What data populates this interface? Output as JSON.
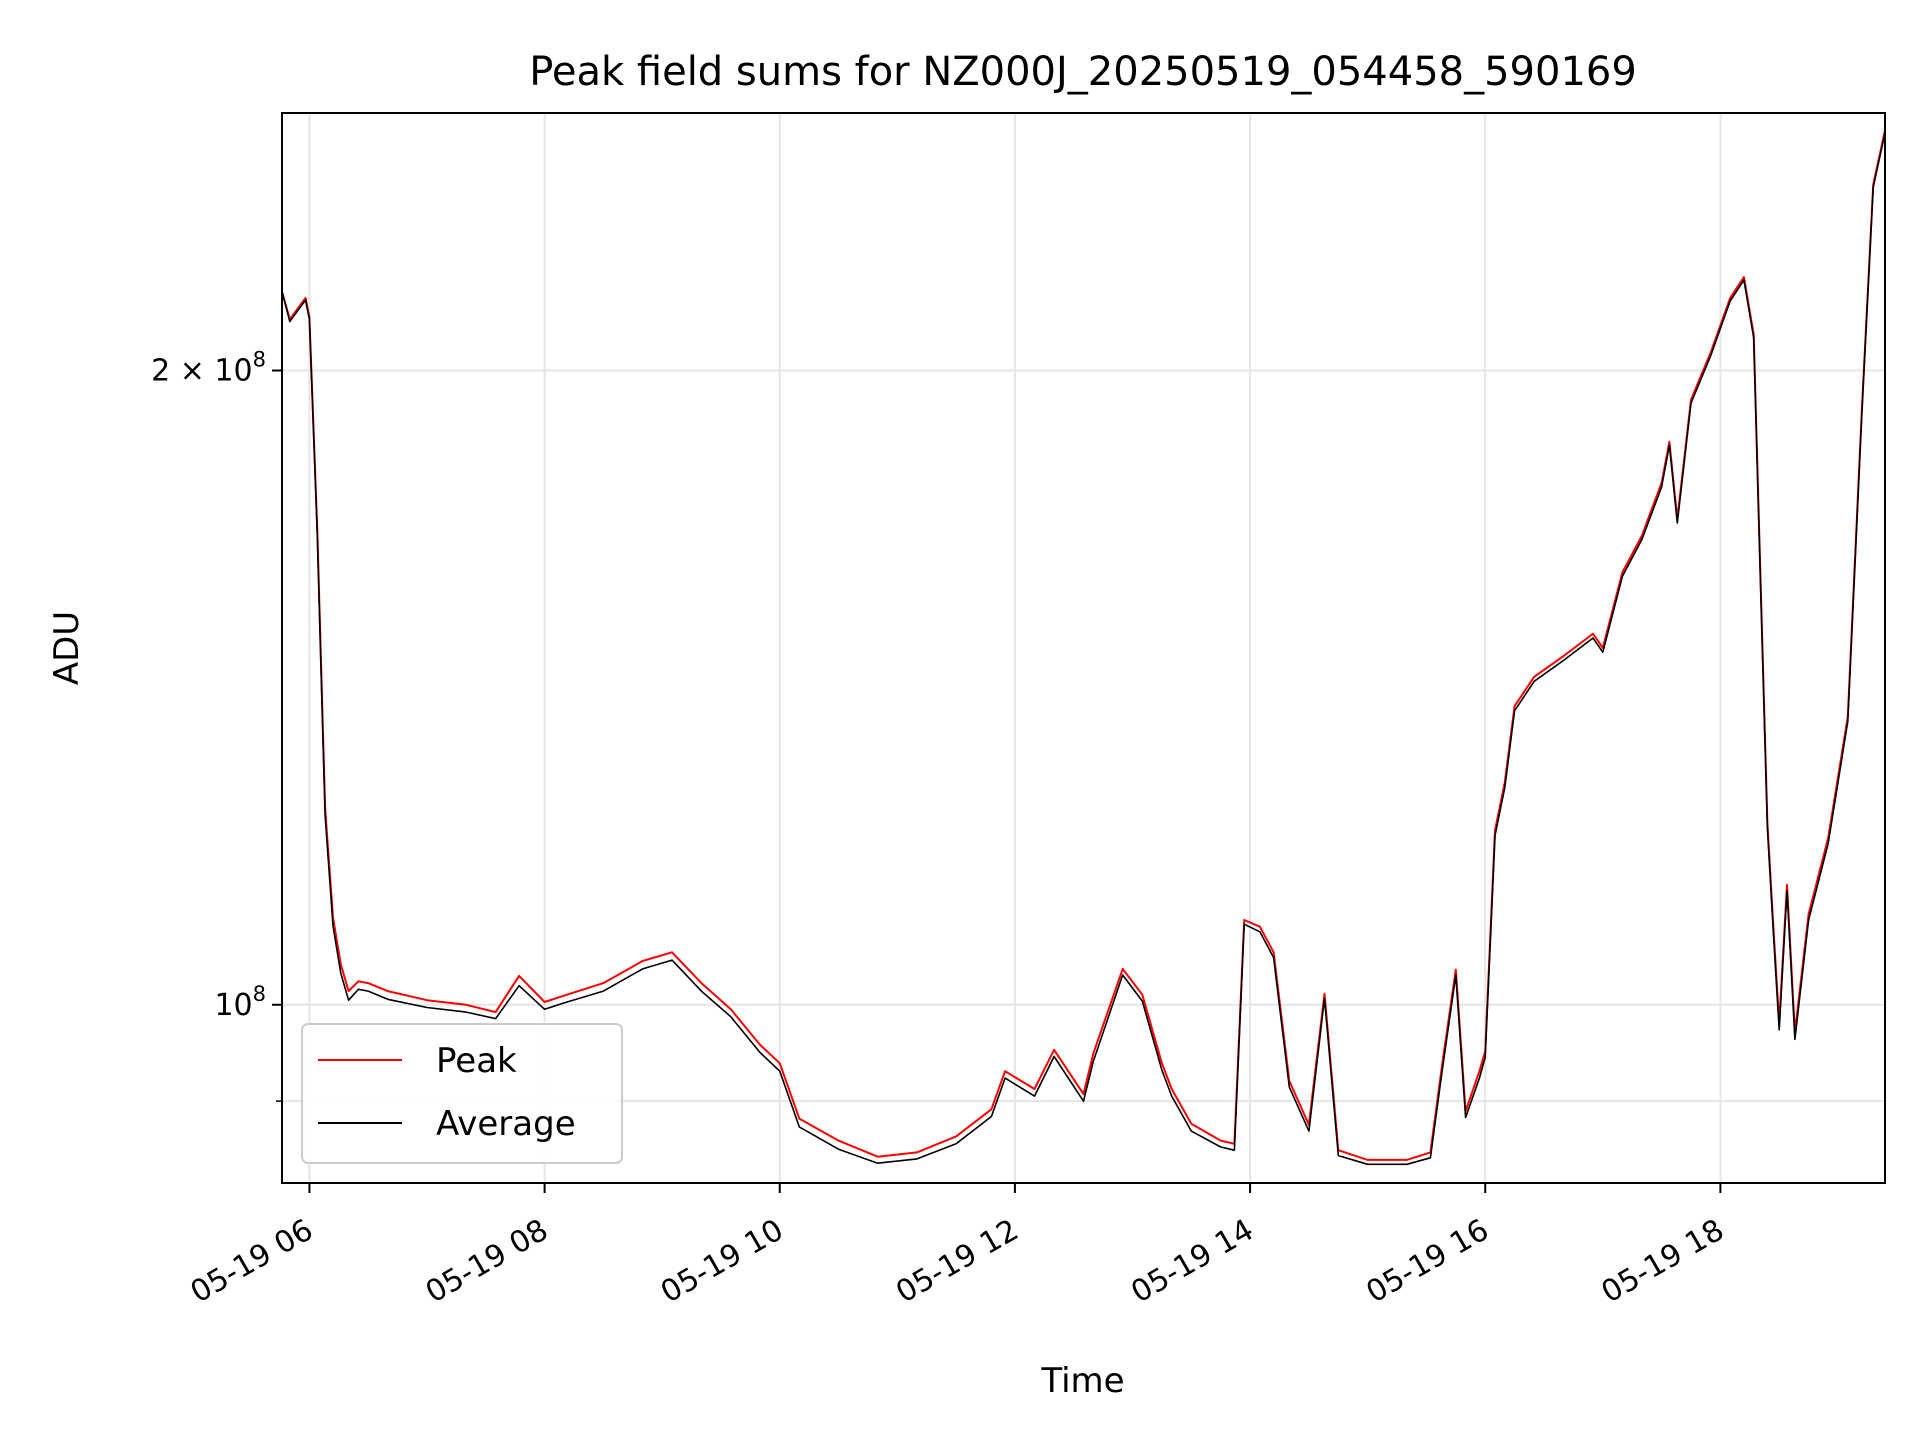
{
  "chart_data": {
    "type": "line",
    "title": "Peak field sums for NZ000J_20250519_054458_590169",
    "xlabel": "Time",
    "ylabel": "ADU",
    "y_scale": "log",
    "ylim": [
      82300000,
      265000000
    ],
    "xlim": [
      "2025-05-19 05:46",
      "2025-05-19 19:24"
    ],
    "grid": true,
    "legend_position": "lower-left",
    "x_ticks": [
      {
        "value": "2025-05-19 06:00",
        "label": "05-19 06"
      },
      {
        "value": "2025-05-19 08:00",
        "label": "05-19 08"
      },
      {
        "value": "2025-05-19 10:00",
        "label": "05-19 10"
      },
      {
        "value": "2025-05-19 12:00",
        "label": "05-19 12"
      },
      {
        "value": "2025-05-19 14:00",
        "label": "05-19 14"
      },
      {
        "value": "2025-05-19 16:00",
        "label": "05-19 16"
      },
      {
        "value": "2025-05-19 18:00",
        "label": "05-19 18"
      }
    ],
    "y_ticks_major": [
      {
        "value": 100000000,
        "base": "10",
        "exp": "8",
        "coef": ""
      },
      {
        "value": 200000000,
        "base": "10",
        "exp": "8",
        "coef": "2 × "
      }
    ],
    "y_ticks_minor": [
      90000000
    ],
    "x": [
      "2025-05-19 05:46",
      "2025-05-19 05:50",
      "2025-05-19 05:54",
      "2025-05-19 05:58",
      "2025-05-19 06:00",
      "2025-05-19 06:04",
      "2025-05-19 06:08",
      "2025-05-19 06:12",
      "2025-05-19 06:16",
      "2025-05-19 06:20",
      "2025-05-19 06:25",
      "2025-05-19 06:30",
      "2025-05-19 06:40",
      "2025-05-19 07:00",
      "2025-05-19 07:20",
      "2025-05-19 07:35",
      "2025-05-19 07:47",
      "2025-05-19 08:00",
      "2025-05-19 08:10",
      "2025-05-19 08:30",
      "2025-05-19 08:50",
      "2025-05-19 09:05",
      "2025-05-19 09:20",
      "2025-05-19 09:35",
      "2025-05-19 09:50",
      "2025-05-19 10:00",
      "2025-05-19 10:10",
      "2025-05-19 10:30",
      "2025-05-19 10:50",
      "2025-05-19 11:10",
      "2025-05-19 11:30",
      "2025-05-19 11:48",
      "2025-05-19 11:55",
      "2025-05-19 12:10",
      "2025-05-19 12:20",
      "2025-05-19 12:35",
      "2025-05-19 12:40",
      "2025-05-19 12:55",
      "2025-05-19 13:05",
      "2025-05-19 13:15",
      "2025-05-19 13:20",
      "2025-05-19 13:30",
      "2025-05-19 13:45",
      "2025-05-19 13:52",
      "2025-05-19 13:57",
      "2025-05-19 14:05",
      "2025-05-19 14:12",
      "2025-05-19 14:20",
      "2025-05-19 14:30",
      "2025-05-19 14:38",
      "2025-05-19 14:45",
      "2025-05-19 15:00",
      "2025-05-19 15:20",
      "2025-05-19 15:32",
      "2025-05-19 15:38",
      "2025-05-19 15:45",
      "2025-05-19 15:50",
      "2025-05-19 15:57",
      "2025-05-19 16:00",
      "2025-05-19 16:05",
      "2025-05-19 16:10",
      "2025-05-19 16:15",
      "2025-05-19 16:25",
      "2025-05-19 16:40",
      "2025-05-19 16:55",
      "2025-05-19 17:00",
      "2025-05-19 17:10",
      "2025-05-19 17:20",
      "2025-05-19 17:30",
      "2025-05-19 17:34",
      "2025-05-19 17:38",
      "2025-05-19 17:45",
      "2025-05-19 17:55",
      "2025-05-19 18:05",
      "2025-05-19 18:12",
      "2025-05-19 18:17",
      "2025-05-19 18:20",
      "2025-05-19 18:24",
      "2025-05-19 18:27",
      "2025-05-19 18:30",
      "2025-05-19 18:34",
      "2025-05-19 18:38",
      "2025-05-19 18:45",
      "2025-05-19 18:55",
      "2025-05-19 19:05",
      "2025-05-19 19:12",
      "2025-05-19 19:18",
      "2025-05-19 19:24"
    ],
    "series": [
      {
        "name": "Peak",
        "color": "#ff0000",
        "values": [
          218000000,
          211500000,
          214000000,
          216500000,
          212000000,
          168000000,
          124000000,
          110000000,
          104500000,
          101500000,
          102600000,
          102400000,
          101500000,
          100500000,
          100000000,
          99200000,
          103200000,
          100300000,
          101000000,
          102400000,
          104900000,
          105900000,
          102400000,
          99500000,
          95700000,
          93800000,
          88300000,
          86200000,
          84700000,
          85100000,
          86600000,
          89200000,
          93000000,
          91200000,
          95200000,
          90700000,
          94800000,
          104000000,
          101100000,
          93800000,
          91200000,
          87800000,
          86200000,
          85900000,
          109700000,
          108900000,
          105900000,
          92000000,
          87700000,
          101200000,
          85300000,
          84400000,
          84400000,
          85100000,
          93600000,
          103900000,
          89000000,
          93000000,
          95000000,
          121000000,
          127500000,
          138600000,
          143100000,
          146400000,
          150000000,
          147700000,
          160400000,
          167000000,
          176900000,
          185000000,
          170000000,
          193700000,
          203900000,
          216500000,
          221500000,
          208000000,
          165000000,
          122000000,
          109000000,
          98000000,
          114000000,
          97000000,
          110400000,
          120000000,
          137000000,
          190000000,
          245000000,
          260000000
        ]
      },
      {
        "name": "Average",
        "color": "#000000",
        "values": [
          218000000,
          211000000,
          213500000,
          216000000,
          211500000,
          167000000,
          123000000,
          109000000,
          103500000,
          100500000,
          101700000,
          101500000,
          100600000,
          99700000,
          99200000,
          98500000,
          102100000,
          99500000,
          100200000,
          101500000,
          104000000,
          105000000,
          101500000,
          98700000,
          94900000,
          93000000,
          87500000,
          85400000,
          84100000,
          84500000,
          85900000,
          88500000,
          92300000,
          90500000,
          94500000,
          90000000,
          94000000,
          103300000,
          100400000,
          93100000,
          90500000,
          87100000,
          85600000,
          85300000,
          109200000,
          108300000,
          105300000,
          91400000,
          87100000,
          100700000,
          84800000,
          84000000,
          84000000,
          84600000,
          93000000,
          103300000,
          88400000,
          92300000,
          94400000,
          120300000,
          126800000,
          137900000,
          142400000,
          145700000,
          149300000,
          147000000,
          159700000,
          166300000,
          176100000,
          184300000,
          169300000,
          193000000,
          203200000,
          215800000,
          220800000,
          207300000,
          164300000,
          121300000,
          108300000,
          97300000,
          113300000,
          96300000,
          109700000,
          119300000,
          136300000,
          189300000,
          244300000,
          259300000
        ]
      }
    ]
  }
}
